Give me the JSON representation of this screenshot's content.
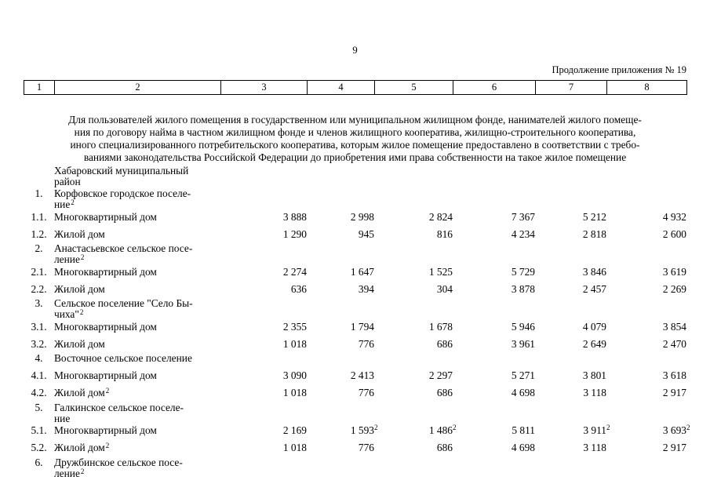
{
  "page": {
    "number": "9",
    "continuation_note": "Продолжение приложения № 19"
  },
  "header_row": {
    "cells": [
      "1",
      "2",
      "3",
      "4",
      "5",
      "6",
      "7",
      "8"
    ]
  },
  "intro": {
    "lines": [
      "Для пользователей жилого помещения в государственном или муниципальном жилищном фонде, нанимателей жилого помеще-",
      "ния по договору найма в частном жилищном фонде и членов жилищного кооператива, жилищно-строительного кооператива,",
      "иного специализированного потребительского кооператива, которым жилое помещение предоставлено в соответствии с требо-",
      "ваниями законодательства Российской Федерации до приобретения ими права собственности на такое жилое помещение"
    ]
  },
  "table": {
    "rows": [
      {
        "num": "",
        "kind": "section-wrap",
        "label_lines": [
          {
            "t": "Хабаровский муниципальный",
            "sup": ""
          },
          {
            "t": "район",
            "sup": ""
          }
        ]
      },
      {
        "num": "1.",
        "kind": "section-wrap",
        "label_lines": [
          {
            "t": "Корфовское городское поселе-",
            "sup": ""
          },
          {
            "t": "ние",
            "sup": "2"
          }
        ]
      },
      {
        "num": "1.1.",
        "kind": "data",
        "label_lines": [
          {
            "t": "Многоквартирный дом",
            "sup": ""
          }
        ],
        "values": [
          {
            "v": "3 888",
            "sup": ""
          },
          {
            "v": "2 998",
            "sup": ""
          },
          {
            "v": "2 824",
            "sup": ""
          },
          {
            "v": "7 367",
            "sup": ""
          },
          {
            "v": "5 212",
            "sup": ""
          },
          {
            "v": "4 932",
            "sup": ""
          }
        ]
      },
      {
        "num": "1.2.",
        "kind": "data-end",
        "label_lines": [
          {
            "t": "Жилой дом",
            "sup": ""
          }
        ],
        "values": [
          {
            "v": "1 290",
            "sup": ""
          },
          {
            "v": "945",
            "sup": ""
          },
          {
            "v": "816",
            "sup": ""
          },
          {
            "v": "4 234",
            "sup": ""
          },
          {
            "v": "2 818",
            "sup": ""
          },
          {
            "v": "2 600",
            "sup": ""
          }
        ]
      },
      {
        "num": "2.",
        "kind": "section-wrap",
        "label_lines": [
          {
            "t": "Анастасьевское сельское посе-",
            "sup": ""
          },
          {
            "t": "ление",
            "sup": "2"
          }
        ]
      },
      {
        "num": "2.1.",
        "kind": "data",
        "label_lines": [
          {
            "t": "Многоквартирный дом",
            "sup": ""
          }
        ],
        "values": [
          {
            "v": "2 274",
            "sup": ""
          },
          {
            "v": "1 647",
            "sup": ""
          },
          {
            "v": "1 525",
            "sup": ""
          },
          {
            "v": "5 729",
            "sup": ""
          },
          {
            "v": "3 846",
            "sup": ""
          },
          {
            "v": "3 619",
            "sup": ""
          }
        ]
      },
      {
        "num": "2.2.",
        "kind": "data-end",
        "label_lines": [
          {
            "t": "Жилой дом",
            "sup": ""
          }
        ],
        "values": [
          {
            "v": "636",
            "sup": ""
          },
          {
            "v": "394",
            "sup": ""
          },
          {
            "v": "304",
            "sup": ""
          },
          {
            "v": "3 878",
            "sup": ""
          },
          {
            "v": "2 457",
            "sup": ""
          },
          {
            "v": "2 269",
            "sup": ""
          }
        ]
      },
      {
        "num": "3.",
        "kind": "section-wrap",
        "label_lines": [
          {
            "t": "Сельское поселение \"Село Бы-",
            "sup": ""
          },
          {
            "t": "чиха\"",
            "sup": "2"
          }
        ]
      },
      {
        "num": "3.1.",
        "kind": "data",
        "label_lines": [
          {
            "t": "Многоквартирный дом",
            "sup": ""
          }
        ],
        "values": [
          {
            "v": "2 355",
            "sup": ""
          },
          {
            "v": "1 794",
            "sup": ""
          },
          {
            "v": "1 678",
            "sup": ""
          },
          {
            "v": "5 946",
            "sup": ""
          },
          {
            "v": "4 079",
            "sup": ""
          },
          {
            "v": "3 854",
            "sup": ""
          }
        ]
      },
      {
        "num": "3.2.",
        "kind": "data-end",
        "label_lines": [
          {
            "t": "Жилой дом",
            "sup": ""
          }
        ],
        "values": [
          {
            "v": "1 018",
            "sup": ""
          },
          {
            "v": "776",
            "sup": ""
          },
          {
            "v": "686",
            "sup": ""
          },
          {
            "v": "3 961",
            "sup": ""
          },
          {
            "v": "2 649",
            "sup": ""
          },
          {
            "v": "2 470",
            "sup": ""
          }
        ]
      },
      {
        "num": "4.",
        "kind": "section",
        "label_lines": [
          {
            "t": "Восточное сельское поселение",
            "sup": ""
          }
        ]
      },
      {
        "num": "4.1.",
        "kind": "data",
        "label_lines": [
          {
            "t": "Многоквартирный дом",
            "sup": ""
          }
        ],
        "values": [
          {
            "v": "3 090",
            "sup": ""
          },
          {
            "v": "2 413",
            "sup": ""
          },
          {
            "v": "2 297",
            "sup": ""
          },
          {
            "v": "5 271",
            "sup": ""
          },
          {
            "v": "3 801",
            "sup": ""
          },
          {
            "v": "3 618",
            "sup": ""
          }
        ]
      },
      {
        "num": "4.2.",
        "kind": "data-end",
        "label_lines": [
          {
            "t": "Жилой дом",
            "sup": "2"
          }
        ],
        "values": [
          {
            "v": "1 018",
            "sup": ""
          },
          {
            "v": "776",
            "sup": ""
          },
          {
            "v": "686",
            "sup": ""
          },
          {
            "v": "4 698",
            "sup": ""
          },
          {
            "v": "3 118",
            "sup": ""
          },
          {
            "v": "2 917",
            "sup": ""
          }
        ]
      },
      {
        "num": "5.",
        "kind": "section-wrap",
        "label_lines": [
          {
            "t": "Галкинское сельское поселе-",
            "sup": ""
          },
          {
            "t": "ние",
            "sup": ""
          }
        ]
      },
      {
        "num": "5.1.",
        "kind": "data",
        "label_lines": [
          {
            "t": "Многоквартирный дом",
            "sup": ""
          }
        ],
        "values": [
          {
            "v": "2 169",
            "sup": ""
          },
          {
            "v": "1 593",
            "sup": "2"
          },
          {
            "v": "1 486",
            "sup": "2"
          },
          {
            "v": "5 811",
            "sup": ""
          },
          {
            "v": "3 911",
            "sup": "2"
          },
          {
            "v": "3 693",
            "sup": "2"
          }
        ]
      },
      {
        "num": "5.2.",
        "kind": "data-end",
        "label_lines": [
          {
            "t": "Жилой дом",
            "sup": "2"
          }
        ],
        "values": [
          {
            "v": "1 018",
            "sup": ""
          },
          {
            "v": "776",
            "sup": ""
          },
          {
            "v": "686",
            "sup": ""
          },
          {
            "v": "4 698",
            "sup": ""
          },
          {
            "v": "3 118",
            "sup": ""
          },
          {
            "v": "2 917",
            "sup": ""
          }
        ]
      },
      {
        "num": "6.",
        "kind": "section-wrap",
        "label_lines": [
          {
            "t": "Дружбинское сельское посе-",
            "sup": ""
          },
          {
            "t": "ление",
            "sup": "2"
          }
        ]
      }
    ]
  }
}
